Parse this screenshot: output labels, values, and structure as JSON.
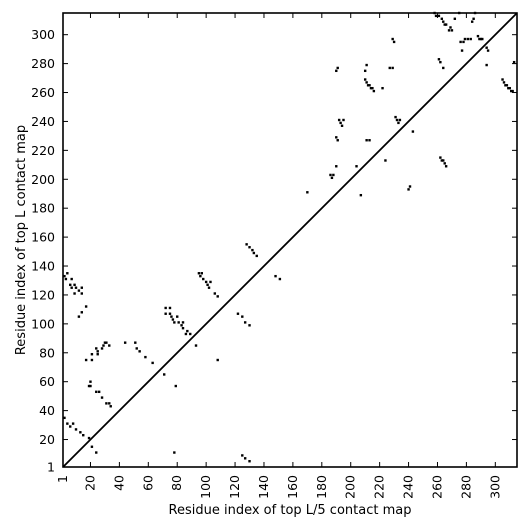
{
  "chart_data": {
    "type": "scatter",
    "title": "",
    "xlabel": "Residue index of top L/5 contact map",
    "ylabel": "Residue index of top L contact map",
    "xlim": [
      1,
      315
    ],
    "ylim": [
      1,
      315
    ],
    "xticks": [
      1,
      20,
      40,
      60,
      80,
      100,
      120,
      140,
      160,
      180,
      200,
      220,
      240,
      260,
      280,
      300
    ],
    "yticks": [
      1,
      20,
      40,
      60,
      80,
      100,
      120,
      140,
      160,
      180,
      200,
      220,
      240,
      260,
      280,
      300
    ],
    "grid": false,
    "diagonal": true,
    "series": [
      {
        "marker": "square",
        "color": "#000000",
        "region": "lower-triangle",
        "points": [
          [
            2,
            133
          ],
          [
            3,
            131
          ],
          [
            4,
            135
          ],
          [
            6,
            127
          ],
          [
            7,
            125
          ],
          [
            7,
            131
          ],
          [
            9,
            121
          ],
          [
            9,
            127
          ],
          [
            10,
            125
          ],
          [
            12,
            123
          ],
          [
            14,
            121
          ],
          [
            14,
            125
          ],
          [
            17,
            112
          ],
          [
            12,
            105
          ],
          [
            14,
            108
          ],
          [
            17,
            75
          ],
          [
            21,
            79
          ],
          [
            21,
            75
          ],
          [
            24,
            83
          ],
          [
            25,
            81
          ],
          [
            25,
            79
          ],
          [
            28,
            83
          ],
          [
            29,
            85
          ],
          [
            31,
            87
          ],
          [
            33,
            85
          ],
          [
            30,
            87
          ],
          [
            44,
            87
          ],
          [
            51,
            87
          ],
          [
            52,
            83
          ],
          [
            54,
            81
          ],
          [
            58,
            77
          ],
          [
            63,
            73
          ],
          [
            71,
            65
          ],
          [
            72,
            107
          ],
          [
            72,
            111
          ],
          [
            75,
            107
          ],
          [
            75,
            111
          ],
          [
            76,
            105
          ],
          [
            77,
            103
          ],
          [
            78,
            101
          ],
          [
            80,
            105
          ],
          [
            81,
            101
          ],
          [
            83,
            99
          ],
          [
            84,
            97
          ],
          [
            84,
            101
          ],
          [
            86,
            93
          ],
          [
            87,
            95
          ],
          [
            89,
            93
          ],
          [
            93,
            85
          ],
          [
            95,
            135
          ],
          [
            97,
            135
          ],
          [
            98,
            131
          ],
          [
            100,
            129
          ],
          [
            101,
            127
          ],
          [
            102,
            125
          ],
          [
            103,
            129
          ],
          [
            106,
            121
          ],
          [
            108,
            119
          ],
          [
            108,
            75
          ],
          [
            122,
            107
          ],
          [
            125,
            105
          ],
          [
            127,
            101
          ],
          [
            130,
            99
          ],
          [
            128,
            155
          ],
          [
            130,
            153
          ],
          [
            132,
            151
          ],
          [
            133,
            149
          ],
          [
            135,
            147
          ],
          [
            148,
            133
          ],
          [
            151,
            131
          ],
          [
            125,
            9
          ],
          [
            127,
            7
          ],
          [
            130,
            5
          ],
          [
            2,
            35
          ],
          [
            4,
            31
          ],
          [
            6,
            29
          ],
          [
            8,
            31
          ],
          [
            10,
            27
          ],
          [
            13,
            25
          ],
          [
            15,
            23
          ],
          [
            19,
            21
          ],
          [
            19,
            57
          ],
          [
            20,
            60
          ],
          [
            20,
            57
          ],
          [
            24,
            53
          ],
          [
            26,
            53
          ],
          [
            28,
            49
          ],
          [
            31,
            45
          ],
          [
            33,
            45
          ],
          [
            34,
            43
          ],
          [
            21,
            15
          ],
          [
            24,
            11
          ],
          [
            79,
            57
          ],
          [
            78,
            11
          ],
          [
            96,
            133
          ],
          [
            210,
            269
          ],
          [
            211,
            267
          ],
          [
            212,
            265
          ],
          [
            213,
            265
          ],
          [
            214,
            263
          ],
          [
            215,
            263
          ],
          [
            216,
            261
          ],
          [
            262,
            215
          ],
          [
            263,
            213
          ],
          [
            264,
            213
          ],
          [
            265,
            211
          ],
          [
            266,
            209
          ],
          [
            261,
            283
          ],
          [
            262,
            281
          ],
          [
            264,
            277
          ],
          [
            229,
            297
          ],
          [
            230,
            295
          ],
          [
            227,
            277
          ],
          [
            229,
            277
          ],
          [
            231,
            243
          ],
          [
            232,
            241
          ],
          [
            233,
            239
          ],
          [
            234,
            241
          ],
          [
            186,
            203
          ],
          [
            187,
            201
          ],
          [
            188,
            203
          ],
          [
            190,
            209
          ],
          [
            192,
            241
          ],
          [
            193,
            239
          ],
          [
            194,
            237
          ],
          [
            195,
            241
          ],
          [
            190,
            229
          ],
          [
            191,
            227
          ],
          [
            211,
            227
          ],
          [
            213,
            227
          ],
          [
            207,
            189
          ],
          [
            204,
            209
          ],
          [
            170,
            191
          ],
          [
            224,
            213
          ],
          [
            240,
            193
          ],
          [
            241,
            195
          ],
          [
            243,
            233
          ],
          [
            222,
            263
          ],
          [
            190,
            275
          ],
          [
            191,
            277
          ],
          [
            210,
            275
          ],
          [
            211,
            279
          ],
          [
            258,
            315
          ],
          [
            259,
            313
          ],
          [
            261,
            313
          ],
          [
            263,
            311
          ],
          [
            264,
            309
          ],
          [
            265,
            307
          ],
          [
            266,
            307
          ],
          [
            268,
            303
          ],
          [
            269,
            305
          ],
          [
            270,
            303
          ],
          [
            272,
            311
          ],
          [
            275,
            315
          ],
          [
            276,
            295
          ],
          [
            277,
            289
          ],
          [
            278,
            295
          ],
          [
            279,
            297
          ],
          [
            281,
            297
          ],
          [
            283,
            297
          ],
          [
            284,
            309
          ],
          [
            285,
            311
          ],
          [
            286,
            315
          ],
          [
            288,
            299
          ],
          [
            289,
            297
          ],
          [
            290,
            297
          ],
          [
            291,
            297
          ],
          [
            294,
            291
          ],
          [
            295,
            289
          ],
          [
            294,
            279
          ],
          [
            305,
            269
          ],
          [
            306,
            267
          ],
          [
            307,
            265
          ],
          [
            308,
            265
          ],
          [
            309,
            263
          ],
          [
            310,
            263
          ],
          [
            311,
            261
          ],
          [
            312,
            261
          ],
          [
            313,
            281
          ]
        ]
      }
    ]
  }
}
